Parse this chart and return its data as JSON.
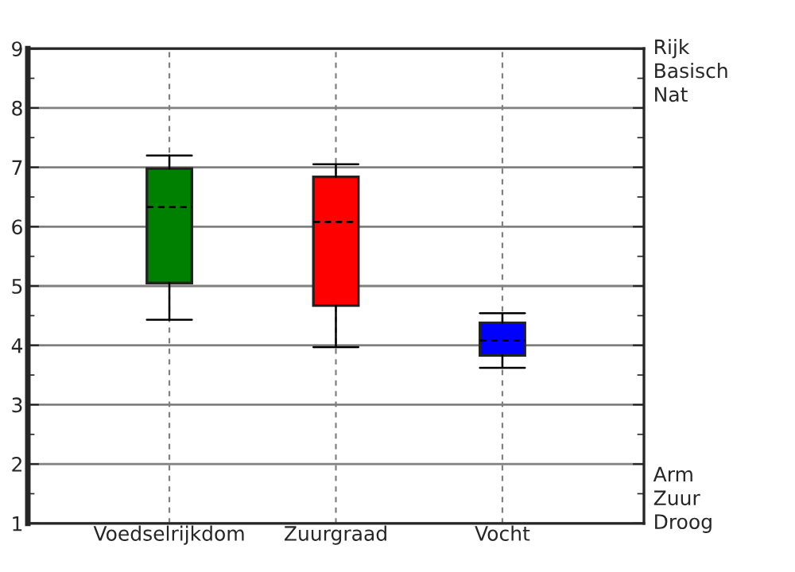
{
  "chart_data": {
    "type": "box",
    "categories": [
      "Voedselrijkdom",
      "Zuurgraad",
      "Vocht"
    ],
    "boxes": [
      {
        "low": 4.43,
        "q1": 5.05,
        "median": 6.33,
        "q3": 6.98,
        "high": 7.2
      },
      {
        "low": 3.97,
        "q1": 4.67,
        "median": 6.08,
        "q3": 6.84,
        "high": 7.05
      },
      {
        "low": 3.62,
        "q1": 3.83,
        "median": 4.08,
        "q3": 4.38,
        "high": 4.54
      }
    ],
    "colors": [
      "#008000",
      "#ff0000",
      "#0000ff"
    ],
    "ylim": [
      1,
      9
    ],
    "yticks": [
      1,
      2,
      3,
      4,
      5,
      6,
      7,
      8,
      9
    ],
    "grid": true,
    "annotations": [
      "Rijk",
      "Basisch",
      "Nat",
      "Arm",
      "Zuur",
      "Droog"
    ]
  }
}
